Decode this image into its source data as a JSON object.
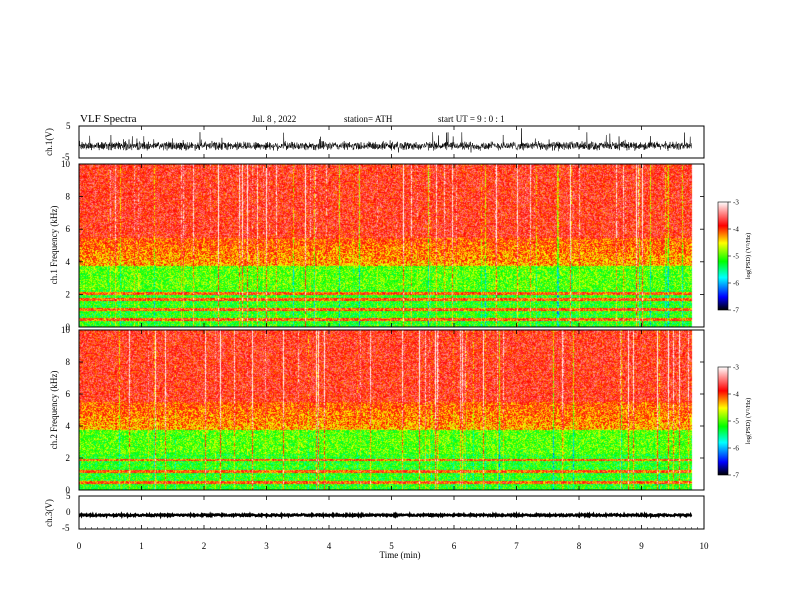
{
  "header": {
    "title": "VLF  Spectra",
    "date": "Jul.  8  ,  2022",
    "station": "station= ATH",
    "start_ut": "start  UT  =    9  : 0  : 1"
  },
  "chart_data": [
    {
      "type": "line",
      "name": "ch1-waveform",
      "ylabel": "ch.1(V)",
      "ylim": [
        -5,
        5
      ],
      "y_ticks": [
        "5",
        "-5"
      ],
      "xlim": [
        0,
        10
      ],
      "data_xmax": 9.8,
      "trace_center": -1.2,
      "trace_amplitude_envelope": 1.6
    },
    {
      "type": "heatmap",
      "name": "ch1-spectrogram",
      "ylabel": "ch.1 Frequency (kHz)",
      "ylim": [
        0,
        10
      ],
      "y_ticks": [
        "0",
        "2",
        "4",
        "6",
        "8",
        "10"
      ],
      "xlim": [
        0,
        10
      ],
      "data_xmax": 9.8,
      "bands_kHz": [
        0.5,
        1.1,
        1.7,
        2.1
      ],
      "colorbar": {
        "label": "log(PSD) (V²/Hz)",
        "range": [
          -7,
          -3
        ],
        "ticks": [
          "-3",
          "-4",
          "-5",
          "-6",
          "-7"
        ]
      }
    },
    {
      "type": "heatmap",
      "name": "ch2-spectrogram",
      "ylabel": "ch.2 Frequency (kHz)",
      "ylim": [
        0,
        10
      ],
      "y_ticks": [
        "0",
        "2",
        "4",
        "6",
        "8",
        "10"
      ],
      "xlim": [
        0,
        10
      ],
      "data_xmax": 9.8,
      "bands_kHz": [
        0.5,
        1.2,
        1.9
      ],
      "colorbar": {
        "label": "log(PSD) (V²/Hz)",
        "range": [
          -7,
          -3
        ],
        "ticks": [
          "-3",
          "-4",
          "-5",
          "-6",
          "-7"
        ]
      }
    },
    {
      "type": "line",
      "name": "ch3-waveform",
      "ylabel": "ch.3(V)",
      "ylim": [
        -5,
        5
      ],
      "y_ticks": [
        "5",
        "0",
        "-5"
      ],
      "xlim": [
        0,
        10
      ],
      "data_xmax": 9.8,
      "trace_center": -0.8,
      "xlabel": "Time  (min)",
      "x_ticks": [
        "0",
        "1",
        "2",
        "3",
        "4",
        "5",
        "6",
        "7",
        "8",
        "9",
        "10"
      ]
    }
  ],
  "colors": {
    "colormap": [
      "#000000",
      "#0000ff",
      "#00ffff",
      "#00ff00",
      "#ffff00",
      "#ff0000",
      "#ffffff"
    ],
    "trace": "#000000",
    "axis": "#000000"
  }
}
